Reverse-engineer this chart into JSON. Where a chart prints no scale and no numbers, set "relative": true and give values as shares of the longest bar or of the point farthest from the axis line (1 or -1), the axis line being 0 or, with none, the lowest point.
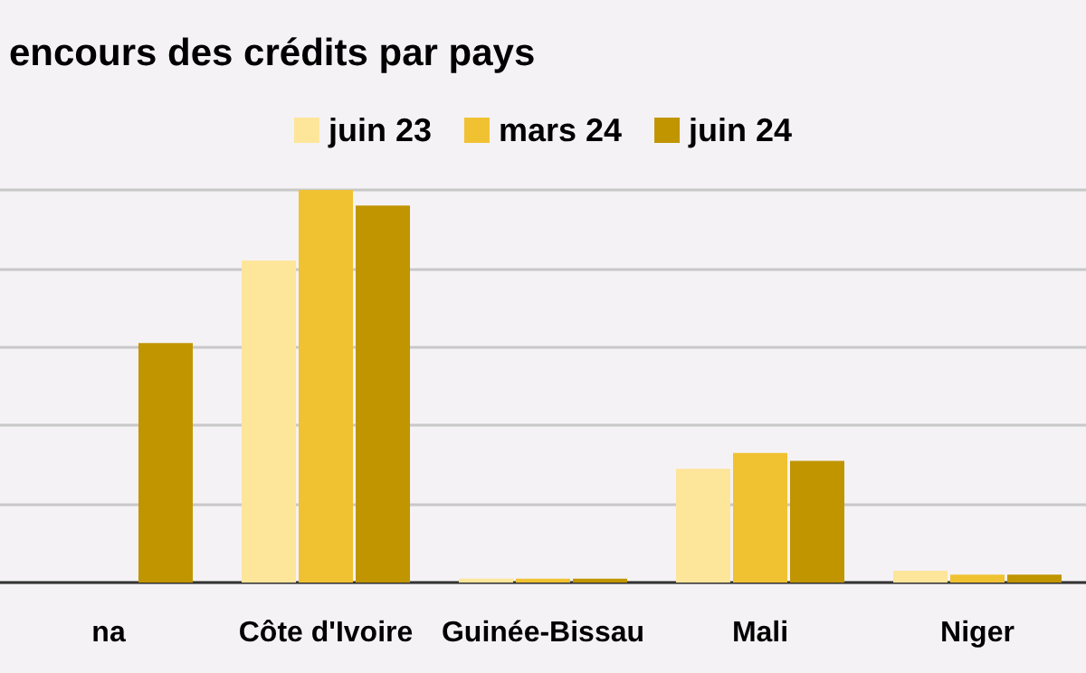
{
  "chart_data": {
    "type": "bar",
    "title": "encours des crédits par pays",
    "categories": [
      "na",
      "Côte d'Ivoire",
      "Guinée-Bissau",
      "Mali",
      "Niger"
    ],
    "relative": true,
    "series": [
      {
        "name": "juin 23",
        "color": "#fde59a",
        "values": [
          null,
          0.82,
          0.01,
          0.29,
          0.03
        ]
      },
      {
        "name": "mars 24",
        "color": "#f0c232",
        "values": [
          null,
          1,
          0.01,
          0.33,
          0.02
        ]
      },
      {
        "name": "juin 24",
        "color": "#c09500",
        "values": [
          0.61,
          0.96,
          0.01,
          0.31,
          0.02
        ]
      }
    ],
    "grid": true,
    "legend": "top"
  }
}
